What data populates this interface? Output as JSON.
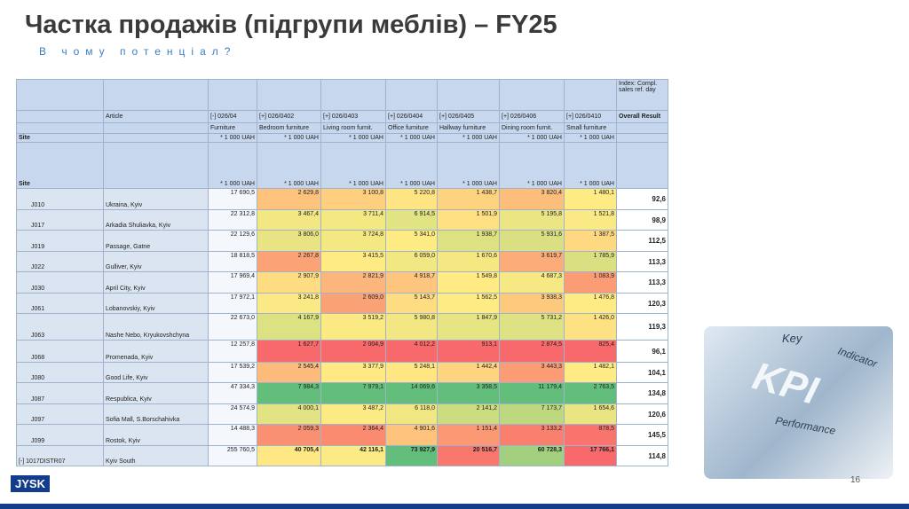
{
  "header": {
    "title": "Частка продажів (підгрупи меблів) – FY25",
    "subtitle": "В чому потенціал?"
  },
  "table": {
    "index_label": "Index: Compl. sales ref. day",
    "article_row": {
      "label": "Article",
      "groups": [
        "[-] 026/04",
        "[+] 026/0402",
        "[+] 026/0403",
        "[+] 026/0404",
        "[+] 026/0405",
        "[+] 026/0406",
        "[+] 026/0410"
      ],
      "result": "Overall Result"
    },
    "categories": [
      "Furniture",
      "Bedroom furniture",
      "Living room furnit.",
      "Office furniture",
      "Hallway furniture",
      "Dining room furnit.",
      "Small furniture"
    ],
    "unit_rows": [
      {
        "site": "Site",
        "units": [
          "* 1 000 UAH",
          "* 1 000 UAH",
          "* 1 000 UAH",
          "* 1 000 UAH",
          "* 1 000 UAH",
          "* 1 000 UAH",
          "* 1 000 UAH"
        ]
      },
      {
        "site": "Site",
        "units": [
          "* 1 000 UAH",
          "* 1 000 UAH",
          "* 1 000 UAH",
          "* 1 000 UAH",
          "* 1 000 UAH",
          "* 1 000 UAH",
          "* 1 000 UAH"
        ]
      }
    ],
    "rows": [
      [
        "J010",
        "Ukraina, Kyiv",
        "17 690,5",
        "2 629,8",
        "3 100,8",
        "5 220,8",
        "1 438,7",
        "3 820,4",
        "1 480,1",
        "92,6"
      ],
      [
        "J017",
        "Arkadia Shuliavka, Kyiv",
        "22 312,8",
        "3 467,4",
        "3 711,4",
        "6 914,5",
        "1 501,9",
        "5 195,8",
        "1 521,8",
        "98,9"
      ],
      [
        "J019",
        "Passage, Gatne",
        "22 129,6",
        "3 806,0",
        "3 724,8",
        "5 341,0",
        "1 938,7",
        "5 931,6",
        "1 387,5",
        "112,5"
      ],
      [
        "J022",
        "Gulliver, Kyiv",
        "18 818,5",
        "2 267,8",
        "3 415,5",
        "6 059,0",
        "1 670,6",
        "3 619,7",
        "1 785,9",
        "113,3"
      ],
      [
        "J030",
        "April City, Kyiv",
        "17 969,4",
        "2 907,9",
        "2 821,9",
        "4 918,7",
        "1 549,8",
        "4 687,3",
        "1 083,9",
        "113,3"
      ],
      [
        "J061",
        "Lobanovskiy, Kyiv",
        "17 972,1",
        "3 241,8",
        "2 609,0",
        "5 143,7",
        "1 562,5",
        "3 938,3",
        "1 476,8",
        "120,3"
      ],
      [
        "J063",
        "Nashe Nebo, Kryukovshchyna",
        "22 673,0",
        "4 167,9",
        "3 519,2",
        "5 980,8",
        "1 847,9",
        "5 731,2",
        "1 426,0",
        "119,3"
      ],
      [
        "J068",
        "Promenada, Kyiv",
        "12 257,8",
        "1 627,7",
        "2 004,9",
        "4 012,2",
        "913,1",
        "2 874,5",
        "825,4",
        "96,1"
      ],
      [
        "J080",
        "Good Life, Kyiv",
        "17 539,2",
        "2 545,4",
        "3 377,9",
        "5 248,1",
        "1 442,4",
        "3 443,3",
        "1 482,1",
        "104,1"
      ],
      [
        "J087",
        "Respublica, Kyiv",
        "47 334,3",
        "7 984,3",
        "7 979,1",
        "14 069,6",
        "3 358,5",
        "11 179,4",
        "2 763,5",
        "134,8"
      ],
      [
        "J097",
        "Sofia Mall, S.Borschahivka",
        "24 574,9",
        "4 000,1",
        "3 487,2",
        "6 118,0",
        "2 141,2",
        "7 173,7",
        "1 654,6",
        "120,6"
      ],
      [
        "J099",
        "Rostok, Kyiv",
        "14 488,3",
        "2 059,3",
        "2 364,4",
        "4 901,6",
        "1 151,4",
        "3 133,2",
        "878,5",
        "145,5"
      ]
    ],
    "total": [
      "[-] 1017DISTR07",
      "Kyiv South",
      "255 760,5",
      "40 705,4",
      "42 116,1",
      "73 927,9",
      "20 516,7",
      "60 728,3",
      "17 766,1",
      "114,8"
    ]
  },
  "image_labels": [
    "Key",
    "Indicator",
    "KPI",
    "Performance"
  ],
  "logo": "JYSK",
  "page_number": "16"
}
